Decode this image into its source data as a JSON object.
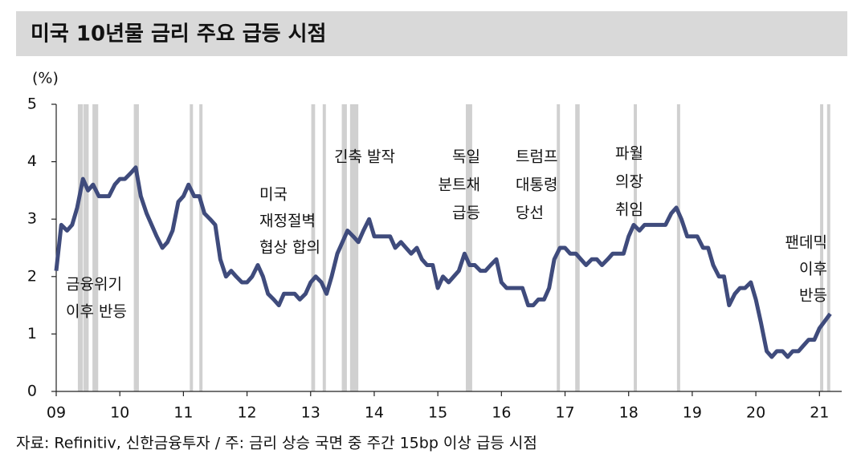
{
  "chart_data": {
    "type": "line",
    "title": "미국 10년물 금리 주요 급등 시점",
    "y_unit": "(%)",
    "source": "자료: Refinitiv, 신한금융투자 / 주: 금리 상승 국면 중 주간 15bp 이상 급등 시점",
    "xlim": [
      2009,
      2021.35
    ],
    "xticks": [
      {
        "value": 2009,
        "label": "09"
      },
      {
        "value": 2010,
        "label": "10"
      },
      {
        "value": 2011,
        "label": "11"
      },
      {
        "value": 2012,
        "label": "12"
      },
      {
        "value": 2013,
        "label": "13"
      },
      {
        "value": 2014,
        "label": "14"
      },
      {
        "value": 2015,
        "label": "15"
      },
      {
        "value": 2016,
        "label": "16"
      },
      {
        "value": 2017,
        "label": "17"
      },
      {
        "value": 2018,
        "label": "18"
      },
      {
        "value": 2019,
        "label": "19"
      },
      {
        "value": 2020,
        "label": "20"
      },
      {
        "value": 2021,
        "label": "21"
      }
    ],
    "ylim": [
      0,
      5
    ],
    "yticks": [
      0,
      1,
      2,
      3,
      4,
      5
    ],
    "x": [
      2009.0,
      2009.08,
      2009.17,
      2009.25,
      2009.33,
      2009.42,
      2009.5,
      2009.58,
      2009.67,
      2009.75,
      2009.83,
      2009.92,
      2010.0,
      2010.08,
      2010.17,
      2010.25,
      2010.33,
      2010.42,
      2010.5,
      2010.58,
      2010.67,
      2010.75,
      2010.83,
      2010.92,
      2011.0,
      2011.08,
      2011.17,
      2011.25,
      2011.33,
      2011.42,
      2011.5,
      2011.58,
      2011.67,
      2011.75,
      2011.83,
      2011.92,
      2012.0,
      2012.08,
      2012.17,
      2012.25,
      2012.33,
      2012.42,
      2012.5,
      2012.58,
      2012.67,
      2012.75,
      2012.83,
      2012.92,
      2013.0,
      2013.08,
      2013.17,
      2013.25,
      2013.33,
      2013.42,
      2013.5,
      2013.58,
      2013.67,
      2013.75,
      2013.83,
      2013.92,
      2014.0,
      2014.08,
      2014.17,
      2014.25,
      2014.33,
      2014.42,
      2014.5,
      2014.58,
      2014.67,
      2014.75,
      2014.83,
      2014.92,
      2015.0,
      2015.08,
      2015.17,
      2015.25,
      2015.33,
      2015.42,
      2015.5,
      2015.58,
      2015.67,
      2015.75,
      2015.83,
      2015.92,
      2016.0,
      2016.08,
      2016.17,
      2016.25,
      2016.33,
      2016.42,
      2016.5,
      2016.58,
      2016.67,
      2016.75,
      2016.83,
      2016.92,
      2017.0,
      2017.08,
      2017.17,
      2017.25,
      2017.33,
      2017.42,
      2017.5,
      2017.58,
      2017.67,
      2017.75,
      2017.83,
      2017.92,
      2018.0,
      2018.08,
      2018.17,
      2018.25,
      2018.33,
      2018.42,
      2018.5,
      2018.58,
      2018.67,
      2018.75,
      2018.83,
      2018.92,
      2019.0,
      2019.08,
      2019.17,
      2019.25,
      2019.33,
      2019.42,
      2019.5,
      2019.58,
      2019.67,
      2019.75,
      2019.83,
      2019.92,
      2020.0,
      2020.08,
      2020.17,
      2020.25,
      2020.33,
      2020.42,
      2020.5,
      2020.58,
      2020.67,
      2020.75,
      2020.83,
      2020.92,
      2021.0,
      2021.17
    ],
    "series": [
      {
        "name": "미국 10년물 금리",
        "color": "#3f4b7c",
        "values": [
          2.1,
          2.9,
          2.8,
          2.9,
          3.2,
          3.7,
          3.5,
          3.6,
          3.4,
          3.4,
          3.4,
          3.6,
          3.7,
          3.7,
          3.8,
          3.9,
          3.4,
          3.1,
          2.9,
          2.7,
          2.5,
          2.6,
          2.8,
          3.3,
          3.4,
          3.6,
          3.4,
          3.4,
          3.1,
          3.0,
          2.9,
          2.3,
          2.0,
          2.1,
          2.0,
          1.9,
          1.9,
          2.0,
          2.2,
          2.0,
          1.7,
          1.6,
          1.5,
          1.7,
          1.7,
          1.7,
          1.6,
          1.7,
          1.9,
          2.0,
          1.9,
          1.7,
          2.0,
          2.4,
          2.6,
          2.8,
          2.7,
          2.6,
          2.8,
          3.0,
          2.7,
          2.7,
          2.7,
          2.7,
          2.5,
          2.6,
          2.5,
          2.4,
          2.5,
          2.3,
          2.2,
          2.2,
          1.8,
          2.0,
          1.9,
          2.0,
          2.1,
          2.4,
          2.2,
          2.2,
          2.1,
          2.1,
          2.2,
          2.3,
          1.9,
          1.8,
          1.8,
          1.8,
          1.8,
          1.5,
          1.5,
          1.6,
          1.6,
          1.8,
          2.3,
          2.5,
          2.5,
          2.4,
          2.4,
          2.3,
          2.2,
          2.3,
          2.3,
          2.2,
          2.3,
          2.4,
          2.4,
          2.4,
          2.7,
          2.9,
          2.8,
          2.9,
          2.9,
          2.9,
          2.9,
          2.9,
          3.1,
          3.2,
          3.0,
          2.7,
          2.7,
          2.7,
          2.5,
          2.5,
          2.2,
          2.0,
          2.0,
          1.5,
          1.7,
          1.8,
          1.8,
          1.9,
          1.6,
          1.2,
          0.7,
          0.6,
          0.7,
          0.7,
          0.6,
          0.7,
          0.7,
          0.8,
          0.9,
          0.9,
          1.1,
          1.35
        ]
      }
    ],
    "highlight_color": "#d0d0d0",
    "highlight_periods": [
      [
        2009.34,
        2009.42
      ],
      [
        2009.43,
        2009.51
      ],
      [
        2009.57,
        2009.66
      ],
      [
        2010.22,
        2010.3
      ],
      [
        2011.1,
        2011.15
      ],
      [
        2011.25,
        2011.3
      ],
      [
        2013.01,
        2013.07
      ],
      [
        2013.19,
        2013.24
      ],
      [
        2013.49,
        2013.57
      ],
      [
        2013.62,
        2013.75
      ],
      [
        2015.44,
        2015.54
      ],
      [
        2016.87,
        2016.92
      ],
      [
        2017.16,
        2017.23
      ],
      [
        2018.08,
        2018.13
      ],
      [
        2018.76,
        2018.81
      ],
      [
        2021.01,
        2021.06
      ],
      [
        2021.12,
        2021.17
      ]
    ],
    "annotations": [
      {
        "lines": [
          "금융위기",
          "이후  반등"
        ]
      },
      {
        "lines": [
          "미국",
          "재정절벽",
          "협상 합의"
        ]
      },
      {
        "lines": [
          "긴축 발작"
        ]
      },
      {
        "lines": [
          "독일",
          "분트채",
          "급등"
        ]
      },
      {
        "lines": [
          "트럼프",
          "대통령",
          "당선"
        ]
      },
      {
        "lines": [
          "파월",
          "의장",
          "취임"
        ]
      },
      {
        "lines": [
          "팬데믹",
          "이후",
          "반등"
        ]
      }
    ]
  }
}
